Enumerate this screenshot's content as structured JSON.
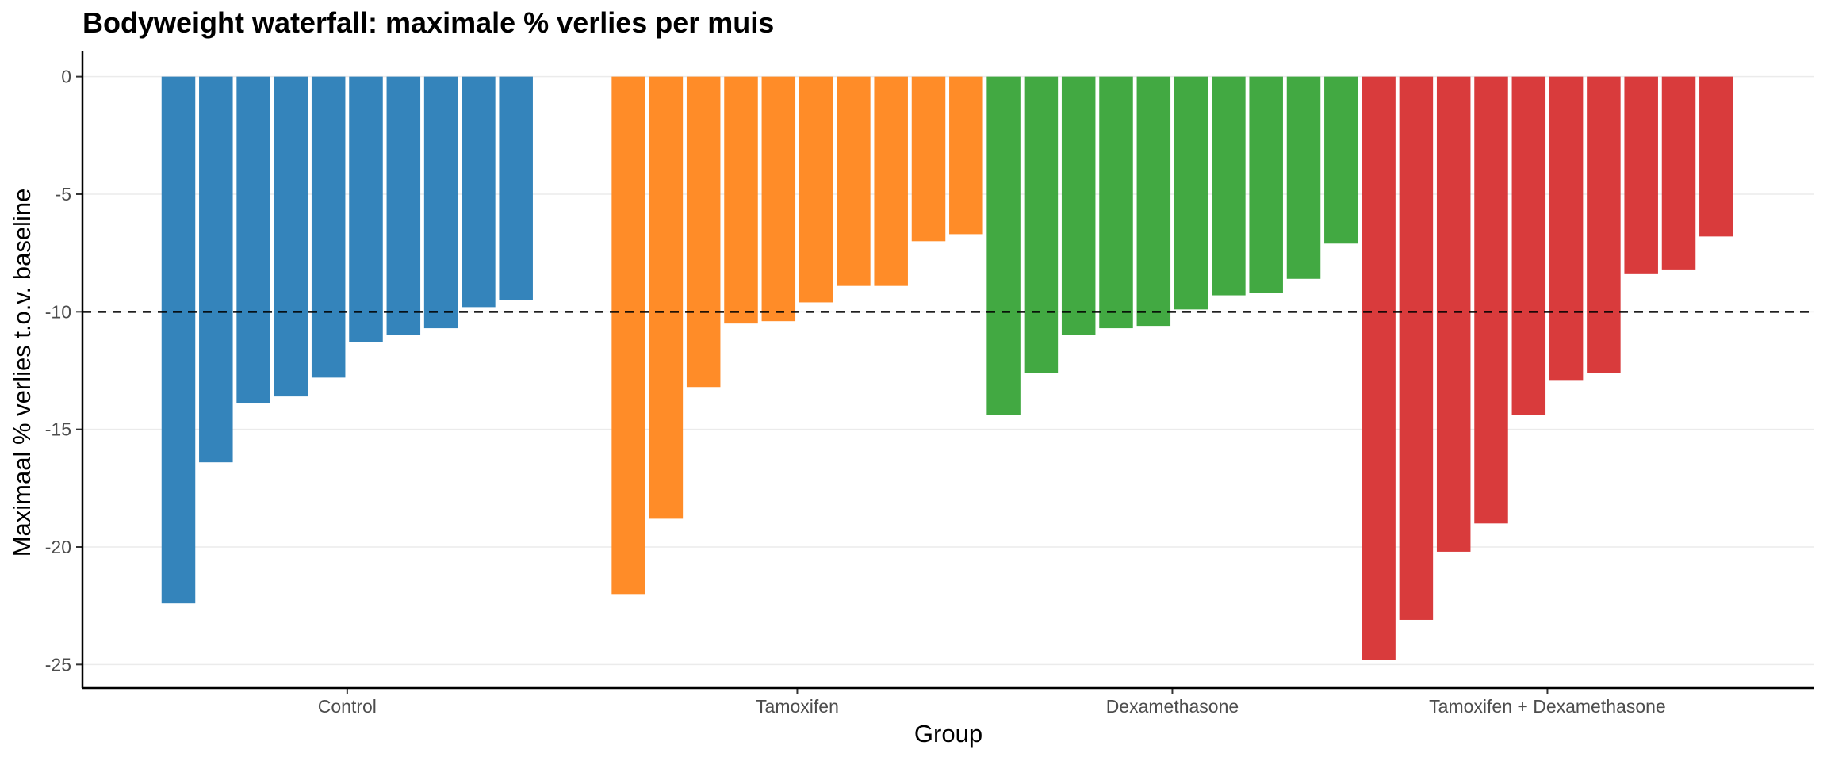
{
  "chart_data": {
    "type": "bar",
    "title": "Bodyweight waterfall: maximale % verlies per muis",
    "xlabel": "Group",
    "ylabel": "Maximaal % verlies t.o.v. baseline",
    "ylim": [
      -26,
      1.1
    ],
    "yticks": [
      0,
      -5,
      -10,
      -15,
      -20,
      -25
    ],
    "grid": true,
    "legend": "none",
    "reference_line": {
      "y": -10,
      "style": "dashed"
    },
    "groups": [
      {
        "name": "Control",
        "color": "#3484BB",
        "slot_start": 0,
        "values": [
          -22.4,
          -16.4,
          -13.9,
          -13.6,
          -12.8,
          -11.3,
          -11.0,
          -10.7,
          -9.8,
          -9.5
        ]
      },
      {
        "name": "Tamoxifen",
        "color": "#FF8C28",
        "slot_start": 12,
        "values": [
          -22.0,
          -18.8,
          -13.2,
          -10.5,
          -10.4,
          -9.6,
          -8.9,
          -8.9,
          -7.0,
          -6.7
        ]
      },
      {
        "name": "Dexamethasone",
        "color": "#42A942",
        "slot_start": 22,
        "values": [
          -14.4,
          -12.6,
          -11.0,
          -10.7,
          -10.6,
          -9.9,
          -9.3,
          -9.2,
          -8.6,
          -7.1
        ]
      },
      {
        "name": "Tamoxifen + Dexamethasone",
        "color": "#D93B3C",
        "slot_start": 32,
        "values": [
          -24.8,
          -23.1,
          -20.2,
          -19.0,
          -14.4,
          -12.9,
          -12.6,
          -8.4,
          -8.2,
          -6.8
        ]
      }
    ]
  }
}
